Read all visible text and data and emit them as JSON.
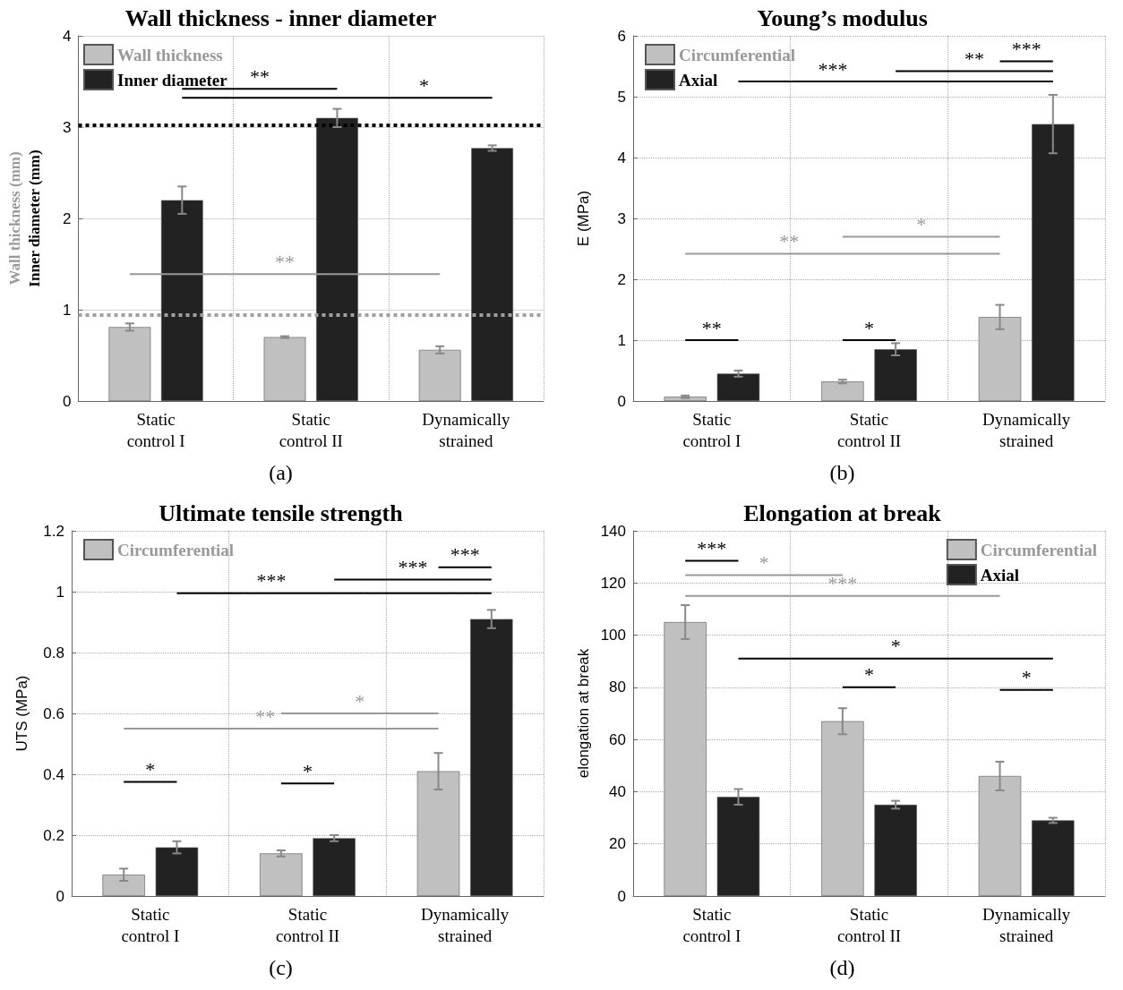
{
  "chart_data": [
    {
      "type": "bar",
      "title": "Wall thickness - inner diameter",
      "ylabel": "Wall thickness (mm)\nInner diameter (mm)",
      "categories": [
        "Static\ncontrol I",
        "Static\ncontrol II",
        "Dynamically\nstrained"
      ],
      "series": [
        {
          "name": "Wall thickness",
          "color": "#c0c0c0",
          "values": [
            0.81,
            0.7,
            0.56
          ],
          "errors": [
            0.04,
            0.01,
            0.04
          ]
        },
        {
          "name": "Inner diameter",
          "color": "#222222",
          "values": [
            2.2,
            3.1,
            2.77
          ],
          "errors": [
            0.15,
            0.1,
            0.03
          ]
        }
      ],
      "ylim": [
        0,
        4
      ],
      "yticks": [
        0,
        1,
        2,
        3,
        4
      ],
      "grid": true,
      "legend": "top left",
      "ref_lines": [
        {
          "axis": "y",
          "value": 3.02,
          "color": "#000000",
          "line_style": "dotted"
        },
        {
          "axis": "y",
          "value": 0.94,
          "color": "#a0a0a0",
          "line_style": "dotted"
        }
      ],
      "annotations": [
        "(a)",
        "**",
        "*",
        "**"
      ]
    },
    {
      "type": "bar",
      "title": "Young’s modulus",
      "ylabel": "E (MPa)",
      "categories": [
        "Static\ncontrol I",
        "Static\ncontrol II",
        "Dynamically\nstrained"
      ],
      "series": [
        {
          "name": "Circumferential",
          "color": "#c0c0c0",
          "values": [
            0.07,
            0.32,
            1.38
          ],
          "errors": [
            0.02,
            0.03,
            0.2
          ]
        },
        {
          "name": "Axial",
          "color": "#222222",
          "values": [
            0.45,
            0.85,
            4.55
          ],
          "errors": [
            0.05,
            0.1,
            0.48
          ]
        }
      ],
      "ylim": [
        0,
        6
      ],
      "yticks": [
        0,
        1,
        2,
        3,
        4,
        5,
        6
      ],
      "grid": true,
      "legend": "top left",
      "annotations": [
        "(b)",
        "**",
        "*",
        "**",
        "*",
        "***",
        "**",
        "***"
      ]
    },
    {
      "type": "bar",
      "title": "Ultimate tensile strength",
      "ylabel": "UTS (MPa)",
      "categories": [
        "Static\ncontrol I",
        "Static\ncontrol II",
        "Dynamically\nstrained"
      ],
      "series": [
        {
          "name": "Circumferential",
          "color": "#c0c0c0",
          "values": [
            0.07,
            0.14,
            0.41
          ],
          "errors": [
            0.02,
            0.01,
            0.06
          ]
        },
        {
          "color": "#222222",
          "values": [
            0.16,
            0.19,
            0.91
          ],
          "errors": [
            0.02,
            0.01,
            0.03
          ]
        }
      ],
      "ylim": [
        0,
        1.2
      ],
      "yticks": [
        0,
        0.2,
        0.4,
        0.6,
        0.8,
        1,
        1.2
      ],
      "grid": true,
      "legend": "top left",
      "annotations": [
        "(c)",
        "*",
        "*",
        "**",
        "*",
        "***",
        "***",
        "***"
      ]
    },
    {
      "type": "bar",
      "title": "Elongation at break",
      "ylabel": "elongation at break",
      "categories": [
        "Static\ncontrol I",
        "Static\ncontrol II",
        "Dynamically\nstrained"
      ],
      "series": [
        {
          "name": "Circumferential",
          "color": "#c0c0c0",
          "values": [
            105,
            67,
            46
          ],
          "errors": [
            6.5,
            5,
            5.5
          ]
        },
        {
          "name": "Axial",
          "color": "#222222",
          "values": [
            38,
            35,
            29
          ],
          "errors": [
            3,
            1.5,
            1
          ]
        }
      ],
      "ylim": [
        0,
        140
      ],
      "yticks": [
        0,
        20,
        40,
        60,
        80,
        100,
        120,
        140
      ],
      "grid": true,
      "legend": "top right",
      "annotations": [
        "(d)",
        "***",
        "*",
        "***",
        "*",
        "*",
        "*"
      ]
    }
  ]
}
